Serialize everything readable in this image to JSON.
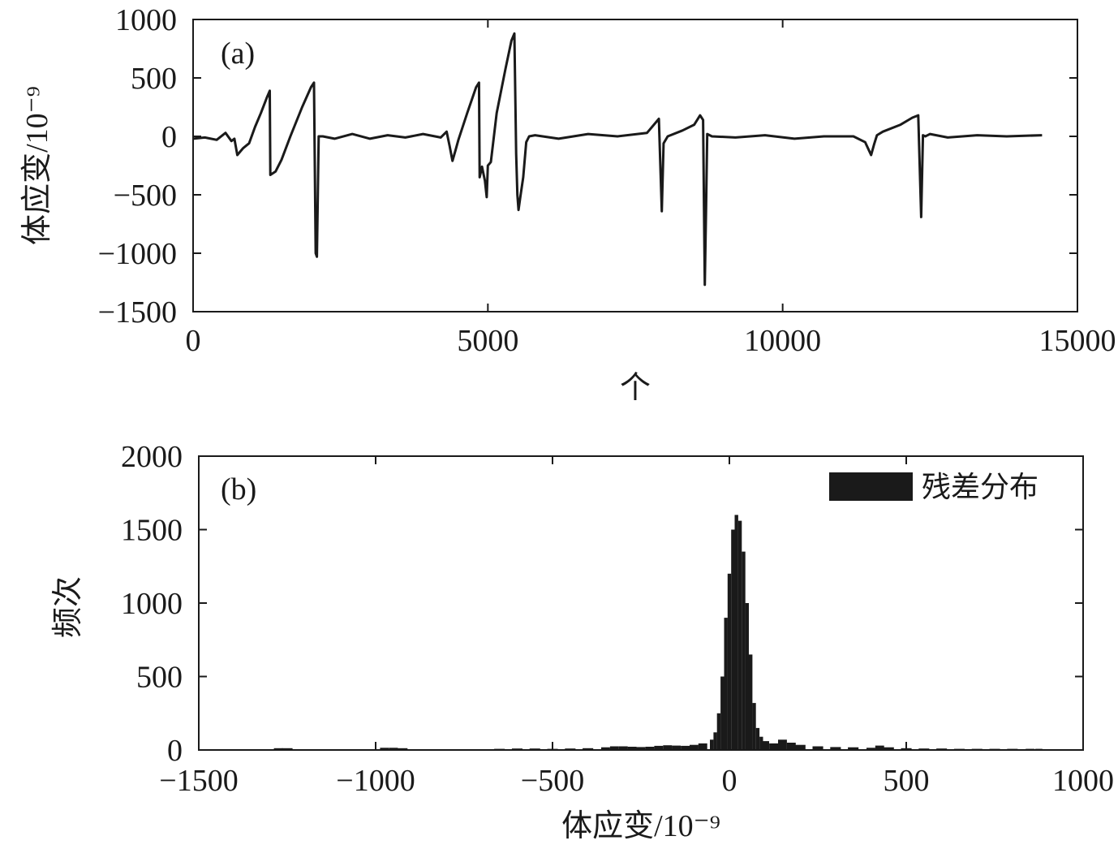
{
  "chart_data": [
    {
      "id": "a",
      "type": "line",
      "panel_label": "(a)",
      "title": "",
      "xlabel": "个",
      "ylabel": "体应变/10⁻⁹",
      "xlim": [
        0,
        15000
      ],
      "ylim": [
        -1500,
        1000
      ],
      "xticks": [
        0,
        5000,
        10000,
        15000
      ],
      "xtick_labels": [
        "0",
        "5000",
        "10000",
        "15000"
      ],
      "yticks": [
        1000,
        500,
        0,
        -500,
        -1000,
        -1500
      ],
      "ytick_labels": [
        "1000",
        "500",
        "0",
        "−500",
        "−1000",
        "−1500"
      ],
      "grid": false,
      "color": "#1a1a1a",
      "series": [
        {
          "name": "",
          "x": [
            0,
            200,
            400,
            550,
            650,
            700,
            750,
            850,
            950,
            1050,
            1150,
            1250,
            1300,
            1310,
            1400,
            1500,
            1650,
            1850,
            2000,
            2050,
            2080,
            2100,
            2130,
            2200,
            2400,
            2700,
            3000,
            3300,
            3600,
            3900,
            4200,
            4300,
            4350,
            4400,
            4450,
            4500,
            4650,
            4800,
            4850,
            4860,
            4900,
            4950,
            4980,
            5000,
            5050,
            5150,
            5300,
            5400,
            5450,
            5480,
            5500,
            5520,
            5550,
            5600,
            5650,
            5700,
            5800,
            6200,
            6700,
            7200,
            7700,
            7900,
            7950,
            7980,
            8050,
            8300,
            8500,
            8600,
            8650,
            8680,
            8700,
            8720,
            8800,
            9200,
            9700,
            10200,
            10700,
            11200,
            11400,
            11500,
            11550,
            11600,
            11700,
            12000,
            12200,
            12300,
            12350,
            12380,
            12420,
            12500,
            12800,
            13300,
            13800,
            14400
          ],
          "y": [
            -20,
            -10,
            -30,
            30,
            -40,
            -20,
            -160,
            -100,
            -60,
            80,
            200,
            330,
            390,
            -330,
            -300,
            -200,
            0,
            250,
            420,
            460,
            -1000,
            -1030,
            0,
            0,
            -20,
            20,
            -20,
            10,
            -10,
            20,
            -10,
            40,
            -80,
            -210,
            -120,
            -30,
            200,
            420,
            460,
            -350,
            -260,
            -380,
            -520,
            -250,
            -220,
            200,
            580,
            820,
            880,
            -150,
            -500,
            -630,
            -520,
            -350,
            -50,
            0,
            10,
            -20,
            20,
            0,
            30,
            150,
            -640,
            -60,
            0,
            50,
            100,
            180,
            140,
            -1270,
            -650,
            20,
            0,
            -10,
            10,
            -20,
            0,
            0,
            -50,
            -160,
            -70,
            10,
            40,
            100,
            160,
            180,
            -690,
            10,
            0,
            20,
            -10,
            10,
            0,
            10
          ]
        }
      ]
    },
    {
      "id": "b",
      "type": "bar",
      "panel_label": "(b)",
      "title": "",
      "xlabel": "体应变/10⁻⁹",
      "ylabel": "频次",
      "xlim": [
        -1500,
        1000
      ],
      "ylim": [
        0,
        2000
      ],
      "xticks": [
        -1500,
        -1000,
        -500,
        0,
        500,
        1000
      ],
      "xtick_labels": [
        "−1500",
        "−1000",
        "−500",
        "0",
        "500",
        "1000"
      ],
      "yticks": [
        2000,
        1500,
        1000,
        500,
        0
      ],
      "ytick_labels": [
        "2000",
        "1500",
        "1000",
        "500",
        "0"
      ],
      "grid": false,
      "legend_position": "top-right",
      "color": "#1a1a1a",
      "series": [
        {
          "name": "残差分布",
          "x": [
            -1275,
            -1250,
            -975,
            -950,
            -925,
            -650,
            -600,
            -550,
            -500,
            -450,
            -400,
            -350,
            -325,
            -300,
            -275,
            -250,
            -225,
            -200,
            -175,
            -150,
            -125,
            -100,
            -75,
            -50,
            -40,
            -30,
            -20,
            -10,
            0,
            10,
            20,
            30,
            40,
            50,
            60,
            70,
            80,
            90,
            100,
            125,
            150,
            175,
            200,
            250,
            300,
            350,
            400,
            425,
            450,
            500,
            550,
            600,
            650,
            700,
            750,
            800,
            850,
            875
          ],
          "values": [
            12,
            12,
            15,
            15,
            12,
            8,
            10,
            10,
            8,
            10,
            12,
            18,
            25,
            25,
            22,
            20,
            22,
            28,
            32,
            30,
            28,
            35,
            45,
            70,
            120,
            250,
            500,
            900,
            1200,
            1500,
            1600,
            1560,
            1350,
            1000,
            650,
            320,
            150,
            90,
            60,
            45,
            70,
            50,
            35,
            25,
            20,
            18,
            15,
            30,
            18,
            12,
            10,
            10,
            8,
            8,
            8,
            8,
            8,
            8
          ]
        }
      ]
    }
  ]
}
